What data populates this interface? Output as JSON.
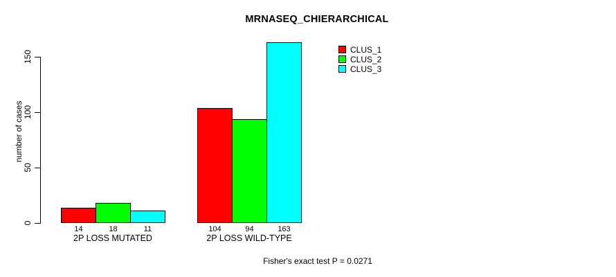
{
  "chart_data": {
    "type": "bar",
    "title": "MRNASEQ_CHIERARCHICAL",
    "xlabel": "",
    "ylabel": "number of cases",
    "categories": [
      "2P LOSS MUTATED",
      "2P LOSS WILD-TYPE"
    ],
    "series": [
      {
        "name": "CLUS_1",
        "color": "#FF0000",
        "values": [
          14,
          104
        ]
      },
      {
        "name": "CLUS_2",
        "color": "#00FF00",
        "values": [
          18,
          94
        ]
      },
      {
        "name": "CLUS_3",
        "color": "#00FFFF",
        "values": [
          11,
          163
        ]
      }
    ],
    "yticks": [
      0,
      50,
      100,
      150
    ],
    "ylim": [
      0,
      165
    ],
    "grid": false,
    "show_values_under_bars": true,
    "legend_position": "top-right",
    "bar_border_color": "#000000"
  },
  "annotations": {
    "stat_note": "Fisher's exact test P = 0.0271"
  }
}
